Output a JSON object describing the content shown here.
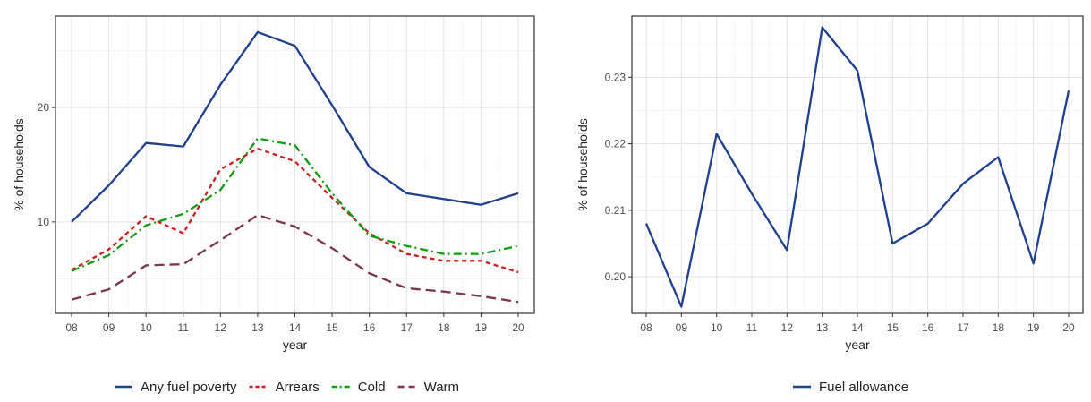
{
  "chart_data": [
    {
      "type": "line",
      "title": "",
      "xlabel": "year",
      "ylabel": "% of households",
      "categories": [
        "08",
        "09",
        "10",
        "11",
        "12",
        "13",
        "14",
        "15",
        "16",
        "17",
        "18",
        "19",
        "20"
      ],
      "ylim": [
        2,
        28
      ],
      "yticks": [
        10,
        20
      ],
      "grid": true,
      "legend_position": "bottom",
      "series": [
        {
          "name": "Any fuel poverty",
          "color": "#1f3f8f",
          "dash": "solid",
          "values": [
            10.0,
            13.2,
            16.9,
            16.6,
            22.0,
            26.6,
            25.4,
            20.2,
            14.8,
            12.5,
            12.0,
            11.5,
            12.5
          ]
        },
        {
          "name": "Arrears",
          "color": "#cc1f1f",
          "dash": "dashed",
          "values": [
            5.8,
            7.6,
            10.5,
            9.0,
            14.6,
            16.4,
            15.3,
            12.1,
            9.0,
            7.2,
            6.6,
            6.6,
            5.6
          ]
        },
        {
          "name": "Cold",
          "color": "#119b11",
          "dash": "dotdash",
          "values": [
            5.7,
            7.1,
            9.7,
            10.7,
            12.8,
            17.3,
            16.7,
            12.5,
            8.8,
            7.9,
            7.2,
            7.2,
            7.9
          ]
        },
        {
          "name": "Warm",
          "color": "#7a3350",
          "dash": "longdash",
          "values": [
            3.2,
            4.1,
            6.2,
            6.3,
            8.4,
            10.6,
            9.6,
            7.7,
            5.5,
            4.2,
            3.9,
            3.5,
            3.0
          ]
        }
      ]
    },
    {
      "type": "line",
      "title": "",
      "xlabel": "year",
      "ylabel": "% of households",
      "categories": [
        "08",
        "09",
        "10",
        "11",
        "12",
        "13",
        "14",
        "15",
        "16",
        "17",
        "18",
        "19",
        "20"
      ],
      "ylim": [
        0.1945,
        0.2392
      ],
      "yticks": [
        0.2,
        0.21,
        0.22,
        0.23
      ],
      "ytick_labels": [
        "0.20",
        "0.21",
        "0.22",
        "0.23"
      ],
      "grid": true,
      "legend_position": "bottom",
      "series": [
        {
          "name": "Fuel allowance",
          "color": "#1f3f8f",
          "dash": "solid",
          "values": [
            0.208,
            0.1955,
            0.2215,
            0.2125,
            0.204,
            0.2375,
            0.231,
            0.205,
            0.208,
            0.214,
            0.218,
            0.202,
            0.228
          ]
        }
      ]
    }
  ]
}
